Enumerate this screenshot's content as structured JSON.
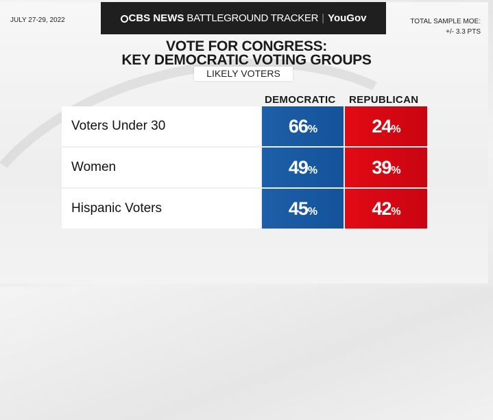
{
  "header": {
    "date": "JULY 27-29, 2022",
    "moe_line1": "TOTAL SAMPLE MOE:",
    "moe_line2": "+/- 3.3 PTS",
    "banner": {
      "brand": "CBS NEWS",
      "program": "BATTLEGROUND TRACKER",
      "partner": "YouGov"
    }
  },
  "colors": {
    "democratic": "#1a5aa3",
    "republican": "#d80812",
    "banner": "#1f1f1f"
  },
  "chart_data": {
    "type": "table",
    "title_line1": "VOTE FOR CONGRESS:",
    "title_line2": "KEY DEMOCRATIC VOTING GROUPS",
    "subtitle": "LIKELY VOTERS",
    "columns": [
      "DEMOCRATIC",
      "REPUBLICAN"
    ],
    "rows": [
      {
        "label": "Voters Under 30",
        "democratic": "66",
        "republican": "24"
      },
      {
        "label": "Women",
        "democratic": "49",
        "republican": "39"
      },
      {
        "label": "Hispanic Voters",
        "democratic": "45",
        "republican": "42"
      }
    ],
    "unit": "%"
  }
}
